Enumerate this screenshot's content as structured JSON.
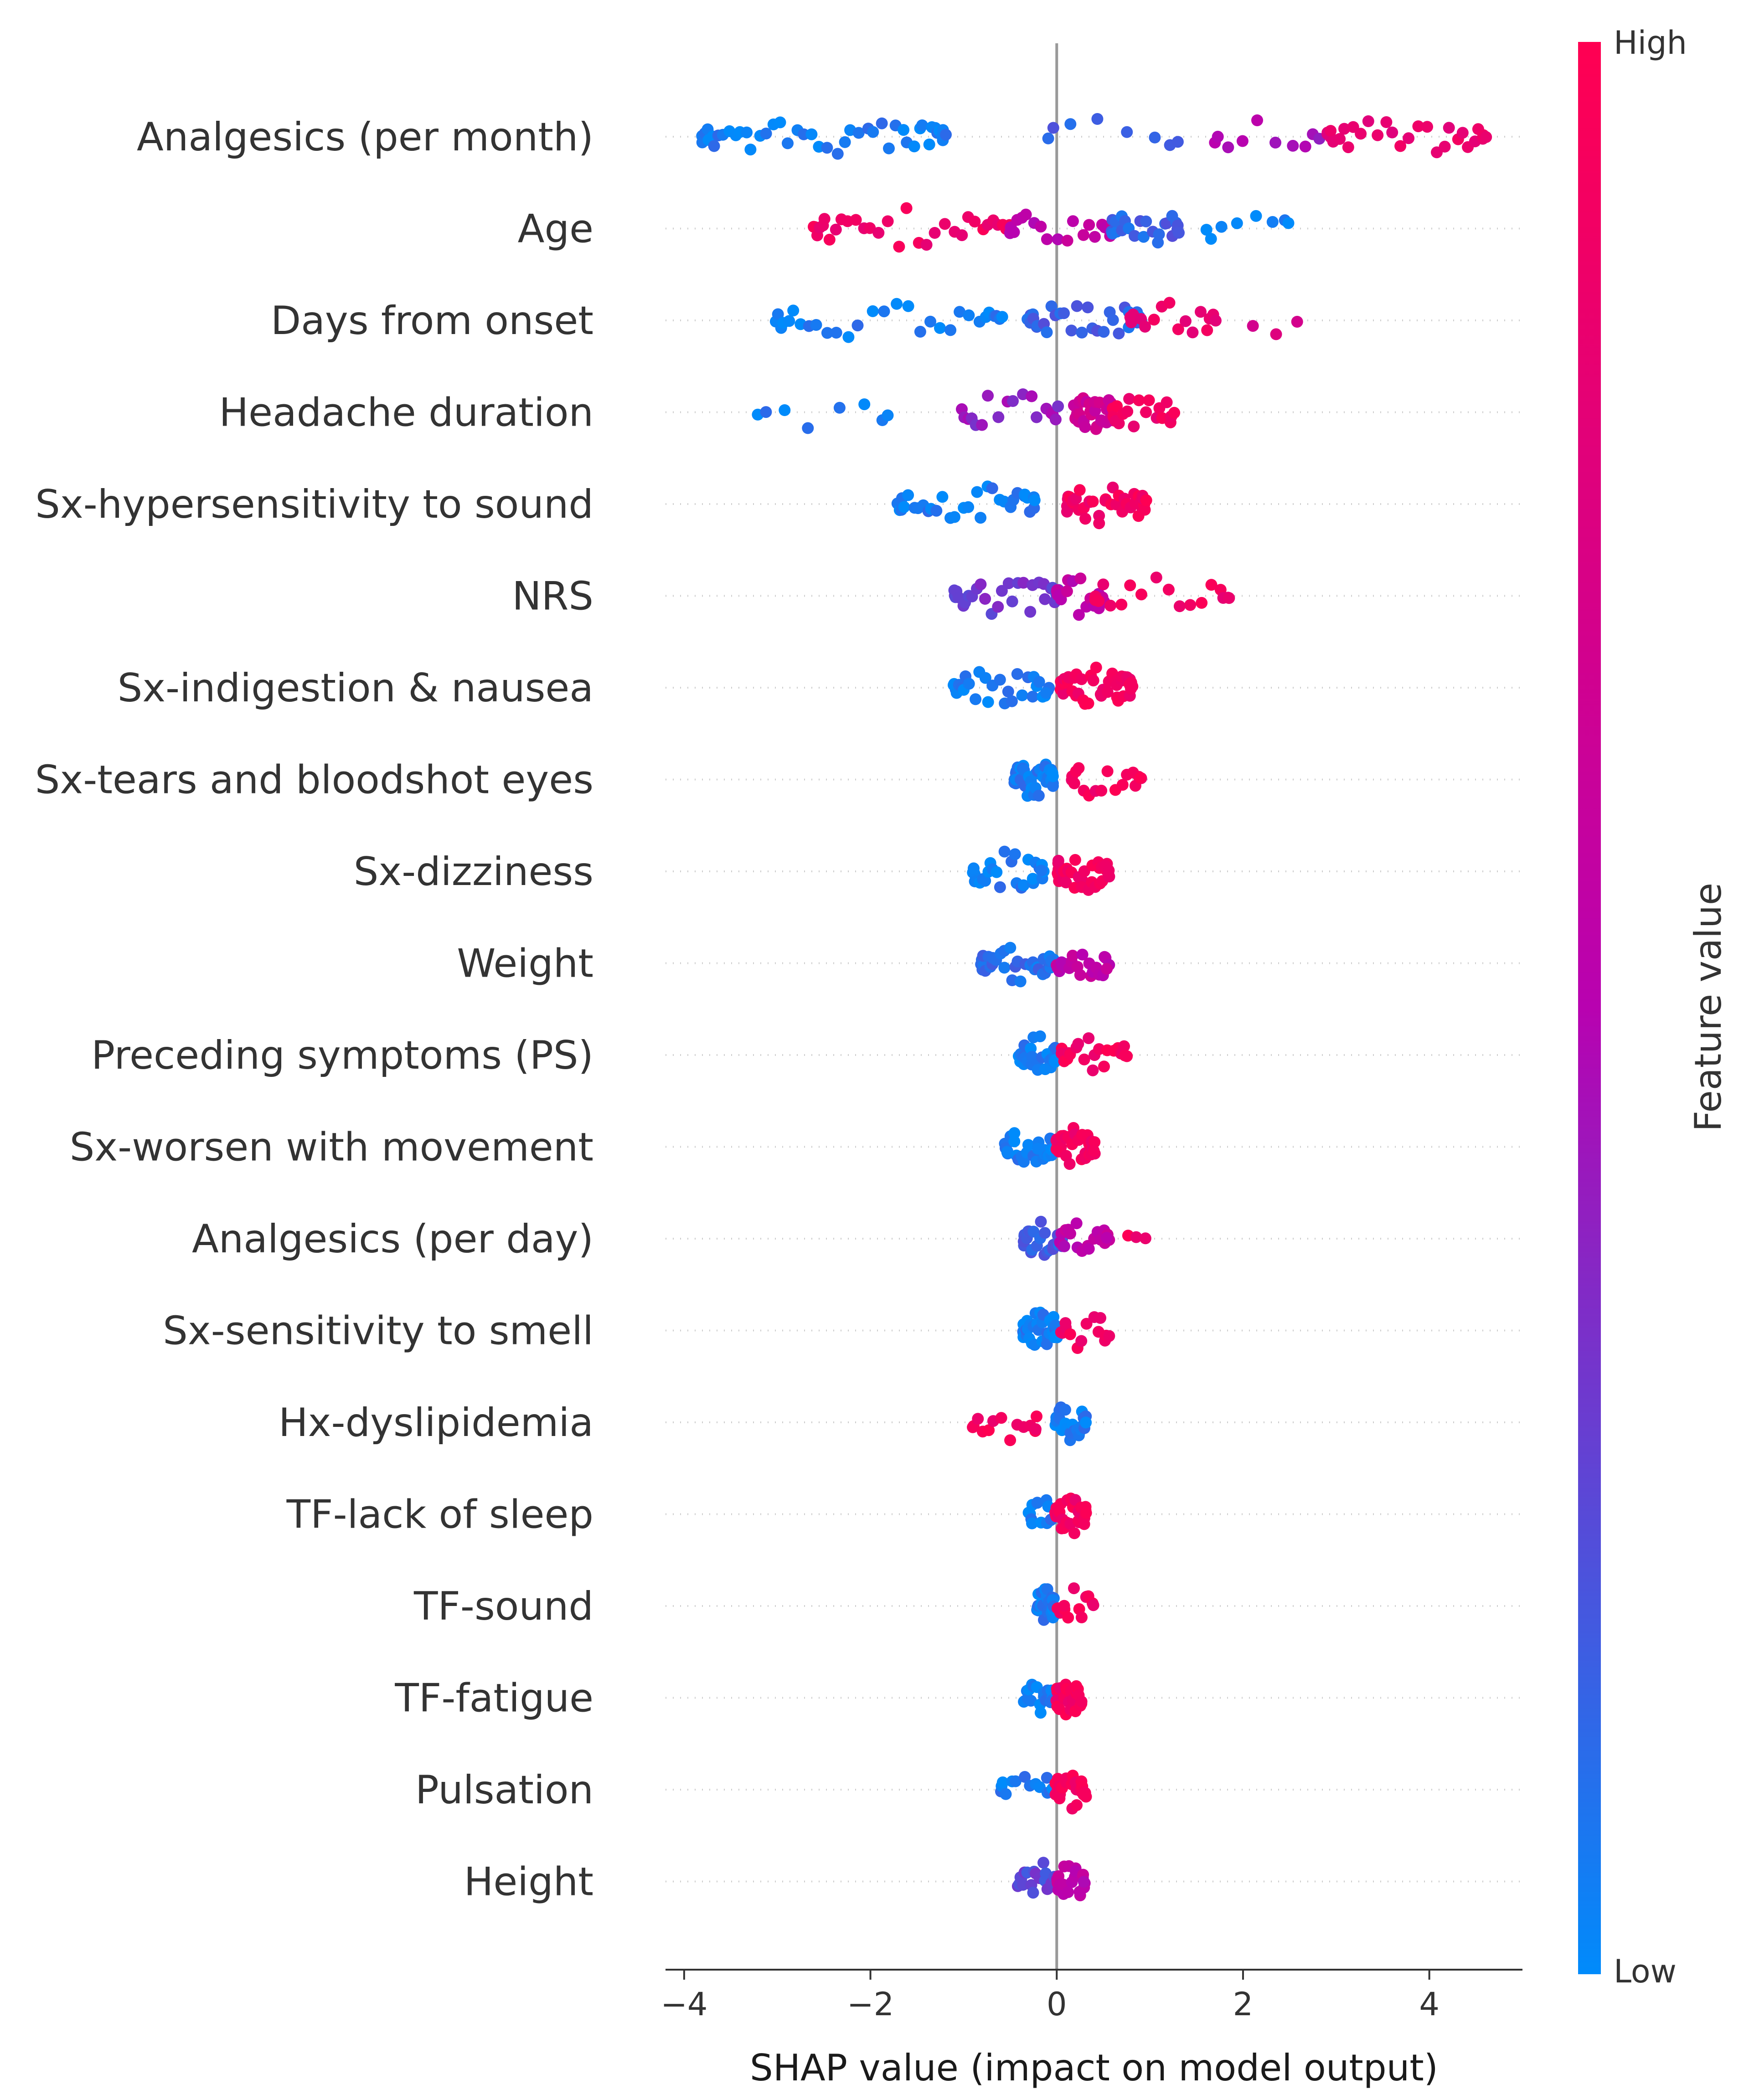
{
  "chart_data": {
    "type": "scatter",
    "subtype": "shap-beeswarm",
    "title": "",
    "xlabel": "SHAP value (impact on model output)",
    "ylabel": "",
    "xlim": [
      -4.2,
      5.0
    ],
    "xticks": [
      -4,
      -2,
      0,
      2,
      4
    ],
    "xtick_labels": [
      "−4",
      "−2",
      "0",
      "2",
      "4"
    ],
    "colorbar": {
      "label": "Feature value",
      "high_label": "High",
      "low_label": "Low",
      "low_color": "#008bfb",
      "mid_color": "#b802b0",
      "high_color": "#ff0052"
    },
    "features": [
      {
        "name": "Analgesics (per month)",
        "clusters": [
          {
            "from": -3.8,
            "to": -1.2,
            "v": 0.05,
            "n": 48
          },
          {
            "from": -0.1,
            "to": 1.3,
            "v": 0.15,
            "n": 8
          },
          {
            "from": 1.7,
            "to": 2.8,
            "v": 0.45,
            "n": 10
          },
          {
            "from": 2.9,
            "to": 4.6,
            "v": 0.85,
            "n": 30
          }
        ]
      },
      {
        "name": "Age",
        "clusters": [
          {
            "from": -2.6,
            "to": -0.5,
            "v": 0.9,
            "n": 34
          },
          {
            "from": -0.5,
            "to": 0.6,
            "v": 0.55,
            "n": 20
          },
          {
            "from": 0.6,
            "to": 1.3,
            "v": 0.15,
            "n": 24
          },
          {
            "from": 1.6,
            "to": 2.5,
            "v": 0.05,
            "n": 8
          }
        ]
      },
      {
        "name": "Days from onset",
        "clusters": [
          {
            "from": -3.0,
            "to": -0.6,
            "v": 0.05,
            "n": 30
          },
          {
            "from": -0.3,
            "to": 0.9,
            "v": 0.15,
            "n": 32
          },
          {
            "from": 0.8,
            "to": 1.7,
            "v": 0.85,
            "n": 16
          },
          {
            "from": 2.1,
            "to": 2.6,
            "v": 0.75,
            "n": 3
          }
        ]
      },
      {
        "name": "Headache duration",
        "clusters": [
          {
            "from": -3.2,
            "to": -1.8,
            "v": 0.05,
            "n": 8
          },
          {
            "from": -1.0,
            "to": 0.0,
            "v": 0.4,
            "n": 18
          },
          {
            "from": 0.2,
            "to": 0.6,
            "v": 0.65,
            "n": 40
          },
          {
            "from": 0.6,
            "to": 1.25,
            "v": 0.9,
            "n": 20
          }
        ]
      },
      {
        "name": "Sx-hypersensitivity to sound",
        "clusters": [
          {
            "from": -1.7,
            "to": -0.25,
            "v": 0.05,
            "n": 34
          },
          {
            "from": 0.1,
            "to": 0.95,
            "v": 0.92,
            "n": 40
          }
        ]
      },
      {
        "name": "NRS",
        "clusters": [
          {
            "from": -1.1,
            "to": 0.0,
            "v": 0.3,
            "n": 30
          },
          {
            "from": 0.0,
            "to": 0.5,
            "v": 0.55,
            "n": 18
          },
          {
            "from": 0.4,
            "to": 1.85,
            "v": 0.9,
            "n": 18
          }
        ]
      },
      {
        "name": "Sx-indigestion & nausea",
        "clusters": [
          {
            "from": -1.1,
            "to": -0.1,
            "v": 0.05,
            "n": 30
          },
          {
            "from": 0.05,
            "to": 0.8,
            "v": 0.92,
            "n": 46
          }
        ]
      },
      {
        "name": "Sx-tears and bloodshot eyes",
        "clusters": [
          {
            "from": -0.45,
            "to": -0.05,
            "v": 0.05,
            "n": 40
          },
          {
            "from": 0.15,
            "to": 0.9,
            "v": 0.92,
            "n": 18
          }
        ]
      },
      {
        "name": "Sx-dizziness",
        "clusters": [
          {
            "from": -0.9,
            "to": -0.15,
            "v": 0.05,
            "n": 28
          },
          {
            "from": 0.0,
            "to": 0.55,
            "v": 0.92,
            "n": 34
          }
        ]
      },
      {
        "name": "Weight",
        "clusters": [
          {
            "from": -0.8,
            "to": -0.05,
            "v": 0.1,
            "n": 34
          },
          {
            "from": 0.0,
            "to": 0.55,
            "v": 0.55,
            "n": 24
          }
        ]
      },
      {
        "name": "Preceding symptoms (PS)",
        "clusters": [
          {
            "from": -0.4,
            "to": 0.0,
            "v": 0.05,
            "n": 30
          },
          {
            "from": 0.05,
            "to": 0.75,
            "v": 0.92,
            "n": 24
          }
        ]
      },
      {
        "name": "Sx-worsen with movement",
        "clusters": [
          {
            "from": -0.55,
            "to": -0.05,
            "v": 0.05,
            "n": 30
          },
          {
            "from": 0.0,
            "to": 0.4,
            "v": 0.92,
            "n": 30
          }
        ]
      },
      {
        "name": "Analgesics (per day)",
        "clusters": [
          {
            "from": -0.35,
            "to": 0.05,
            "v": 0.15,
            "n": 26
          },
          {
            "from": 0.05,
            "to": 0.55,
            "v": 0.55,
            "n": 20
          },
          {
            "from": 0.75,
            "to": 0.95,
            "v": 0.92,
            "n": 3
          }
        ]
      },
      {
        "name": "Sx-sensitivity to smell",
        "clusters": [
          {
            "from": -0.35,
            "to": 0.0,
            "v": 0.05,
            "n": 40
          },
          {
            "from": 0.05,
            "to": 0.55,
            "v": 0.92,
            "n": 14
          }
        ]
      },
      {
        "name": "Hx-dyslipidemia",
        "clusters": [
          {
            "from": -0.9,
            "to": -0.2,
            "v": 0.92,
            "n": 14
          },
          {
            "from": 0.0,
            "to": 0.3,
            "v": 0.05,
            "n": 24
          }
        ]
      },
      {
        "name": "TF-lack of sleep",
        "clusters": [
          {
            "from": -0.3,
            "to": -0.05,
            "v": 0.05,
            "n": 14
          },
          {
            "from": 0.0,
            "to": 0.3,
            "v": 0.92,
            "n": 28
          }
        ]
      },
      {
        "name": "TF-sound",
        "clusters": [
          {
            "from": -0.2,
            "to": -0.02,
            "v": 0.05,
            "n": 32
          },
          {
            "from": 0.02,
            "to": 0.38,
            "v": 0.92,
            "n": 14
          }
        ]
      },
      {
        "name": "TF-fatigue",
        "clusters": [
          {
            "from": -0.35,
            "to": -0.05,
            "v": 0.05,
            "n": 20
          },
          {
            "from": 0.0,
            "to": 0.25,
            "v": 0.92,
            "n": 26
          }
        ]
      },
      {
        "name": "Pulsation",
        "clusters": [
          {
            "from": -0.6,
            "to": -0.05,
            "v": 0.05,
            "n": 14
          },
          {
            "from": 0.0,
            "to": 0.3,
            "v": 0.92,
            "n": 26
          }
        ]
      },
      {
        "name": "Height",
        "clusters": [
          {
            "from": -0.4,
            "to": 0.0,
            "v": 0.25,
            "n": 24
          },
          {
            "from": 0.0,
            "to": 0.3,
            "v": 0.55,
            "n": 24
          }
        ]
      }
    ]
  }
}
